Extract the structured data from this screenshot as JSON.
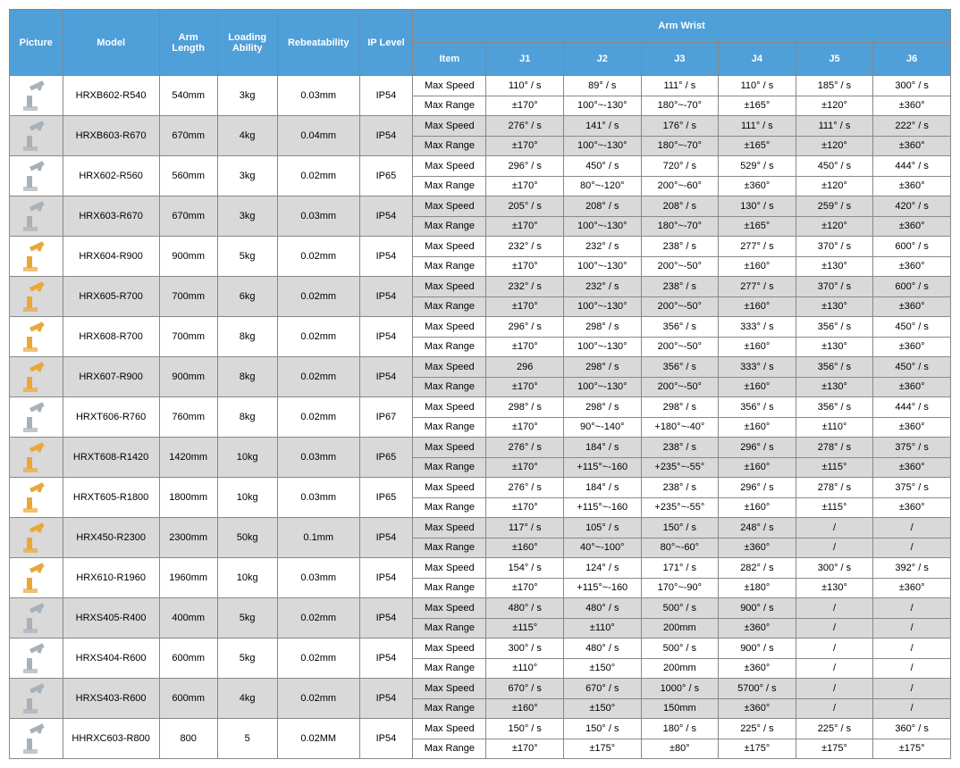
{
  "headers": {
    "picture": "Picture",
    "model": "Model",
    "arm_length": "Arm Length",
    "loading_ability": "Loading Ability",
    "repeatability": "Rebeatability",
    "ip_level": "IP Level",
    "arm_wrist": "Arm    Wrist",
    "item": "Item",
    "j1": "J1",
    "j2": "J2",
    "j3": "J3",
    "j4": "J4",
    "j5": "J5",
    "j6": "J6"
  },
  "row_labels": {
    "max_speed": "Max Speed",
    "max_range": "Max Range"
  },
  "colors": {
    "header_bg": "#4f9fd8",
    "header_text": "#ffffff",
    "odd_bg": "#ffffff",
    "even_bg": "#d9d9d9",
    "border": "#888888",
    "robot_gray": "#a8b0b8",
    "robot_yellow": "#e8a838"
  },
  "rows": [
    {
      "model": "HRXB602-R540",
      "arm_length": "540mm",
      "loading": "3kg",
      "rep": "0.03mm",
      "ip": "IP54",
      "speed": [
        "110° / s",
        "89° / s",
        "111° / s",
        "110° / s",
        "185° / s",
        "300° / s"
      ],
      "range": [
        "±170°",
        "100°~-130°",
        "180°~-70°",
        "±165°",
        "±120°",
        "±360°"
      ],
      "pic_color": "#a8b0b8"
    },
    {
      "model": "HRXB603-R670",
      "arm_length": "670mm",
      "loading": "4kg",
      "rep": "0.04mm",
      "ip": "IP54",
      "speed": [
        "276° / s",
        "141° / s",
        "176° / s",
        "111° / s",
        "111° / s",
        "222° / s"
      ],
      "range": [
        "±170°",
        "100°~-130°",
        "180°~-70°",
        "±165°",
        "±120°",
        "±360°"
      ],
      "pic_color": "#a8b0b8"
    },
    {
      "model": "HRX602-R560",
      "arm_length": "560mm",
      "loading": "3kg",
      "rep": "0.02mm",
      "ip": "IP65",
      "speed": [
        "296° / s",
        "450° / s",
        "720° / s",
        "529° / s",
        "450° / s",
        "444° / s"
      ],
      "range": [
        "±170°",
        "80°~-120°",
        "200°~-60°",
        "±360°",
        "±120°",
        "±360°"
      ],
      "pic_color": "#a8b0b8"
    },
    {
      "model": "HRX603-R670",
      "arm_length": "670mm",
      "loading": "3kg",
      "rep": "0.03mm",
      "ip": "IP54",
      "speed": [
        "205° / s",
        "208° / s",
        "208° / s",
        "130° / s",
        "259° / s",
        "420° / s"
      ],
      "range": [
        "±170°",
        "100°~-130°",
        "180°~-70°",
        "±165°",
        "±120°",
        "±360°"
      ],
      "pic_color": "#a8b0b8"
    },
    {
      "model": "HRX604-R900",
      "arm_length": "900mm",
      "loading": "5kg",
      "rep": "0.02mm",
      "ip": "IP54",
      "speed": [
        "232° / s",
        "232° / s",
        "238° / s",
        "277° / s",
        "370° / s",
        "600° / s"
      ],
      "range": [
        "±170°",
        "100°~-130°",
        "200°~-50°",
        "±160°",
        "±130°",
        "±360°"
      ],
      "pic_color": "#e8a838"
    },
    {
      "model": "HRX605-R700",
      "arm_length": "700mm",
      "loading": "6kg",
      "rep": "0.02mm",
      "ip": "IP54",
      "speed": [
        "232° / s",
        "232° / s",
        "238° / s",
        "277° / s",
        "370° / s",
        "600° / s"
      ],
      "range": [
        "±170°",
        "100°~-130°",
        "200°~-50°",
        "±160°",
        "±130°",
        "±360°"
      ],
      "pic_color": "#e8a838"
    },
    {
      "model": "HRX608-R700",
      "arm_length": "700mm",
      "loading": "8kg",
      "rep": "0.02mm",
      "ip": "IP54",
      "speed": [
        "296° / s",
        "298° / s",
        "356° / s",
        "333° / s",
        "356° / s",
        "450° / s"
      ],
      "range": [
        "±170°",
        "100°~-130°",
        "200°~-50°",
        "±160°",
        "±130°",
        "±360°"
      ],
      "pic_color": "#e8a838"
    },
    {
      "model": "HRX607-R900",
      "arm_length": "900mm",
      "loading": "8kg",
      "rep": "0.02mm",
      "ip": "IP54",
      "speed": [
        "296",
        "298° / s",
        "356° / s",
        "333° / s",
        "356° / s",
        "450° / s"
      ],
      "range": [
        "±170°",
        "100°~-130°",
        "200°~-50°",
        "±160°",
        "±130°",
        "±360°"
      ],
      "pic_color": "#e8a838"
    },
    {
      "model": "HRXT606-R760",
      "arm_length": "760mm",
      "loading": "8kg",
      "rep": "0.02mm",
      "ip": "IP67",
      "speed": [
        "298° / s",
        "298° / s",
        "298° / s",
        "356° / s",
        "356° / s",
        "444° / s"
      ],
      "range": [
        "±170°",
        "90°~-140°",
        "+180°~-40°",
        "±160°",
        "±110°",
        "±360°"
      ],
      "pic_color": "#a8b0b8"
    },
    {
      "model": "HRXT608-R1420",
      "arm_length": "1420mm",
      "loading": "10kg",
      "rep": "0.03mm",
      "ip": "IP65",
      "speed": [
        "276° / s",
        "184° / s",
        "238° / s",
        "296° / s",
        "278° / s",
        "375° / s"
      ],
      "range": [
        "±170°",
        "+115°~-160",
        "+235°~-55°",
        "±160°",
        "±115°",
        "±360°"
      ],
      "pic_color": "#e8a838"
    },
    {
      "model": "HRXT605-R1800",
      "arm_length": "1800mm",
      "loading": "10kg",
      "rep": "0.03mm",
      "ip": "IP65",
      "speed": [
        "276° / s",
        "184° / s",
        "238° / s",
        "296° / s",
        "278° / s",
        "375° / s"
      ],
      "range": [
        "±170°",
        "+115°~-160",
        "+235°~-55°",
        "±160°",
        "±115°",
        "±360°"
      ],
      "pic_color": "#e8a838"
    },
    {
      "model": "HRX450-R2300",
      "arm_length": "2300mm",
      "loading": "50kg",
      "rep": "0.1mm",
      "ip": "IP54",
      "speed": [
        "117° / s",
        "105° / s",
        "150° / s",
        "248° / s",
        "/",
        "/"
      ],
      "range": [
        "±160°",
        "40°~-100°",
        "80°~-60°",
        "±360°",
        "/",
        "/"
      ],
      "pic_color": "#e8a838"
    },
    {
      "model": "HRX610-R1960",
      "arm_length": "1960mm",
      "loading": "10kg",
      "rep": "0.03mm",
      "ip": "IP54",
      "speed": [
        "154° / s",
        "124° / s",
        "171° / s",
        "282° / s",
        "300° / s",
        "392° / s"
      ],
      "range": [
        "±170°",
        "+115°~-160",
        "170°~-90°",
        "±180°",
        "±130°",
        "±360°"
      ],
      "pic_color": "#e8a838"
    },
    {
      "model": "HRXS405-R400",
      "arm_length": "400mm",
      "loading": "5kg",
      "rep": "0.02mm",
      "ip": "IP54",
      "speed": [
        "480° / s",
        "480° / s",
        "500° / s",
        "900° / s",
        "/",
        "/"
      ],
      "range": [
        "±115°",
        "±110°",
        "200mm",
        "±360°",
        "/",
        "/"
      ],
      "pic_color": "#a8b0b8"
    },
    {
      "model": "HRXS404-R600",
      "arm_length": "600mm",
      "loading": "5kg",
      "rep": "0.02mm",
      "ip": "IP54",
      "speed": [
        "300° / s",
        "480° / s",
        "500° / s",
        "900° / s",
        "/",
        "/"
      ],
      "range": [
        "±110°",
        "±150°",
        "200mm",
        "±360°",
        "/",
        "/"
      ],
      "pic_color": "#a8b0b8"
    },
    {
      "model": "HRXS403-R600",
      "arm_length": "600mm",
      "loading": "4kg",
      "rep": "0.02mm",
      "ip": "IP54",
      "speed": [
        "670° / s",
        "670° / s",
        "1000° / s",
        "5700° / s",
        "/",
        "/"
      ],
      "range": [
        "±160°",
        "±150°",
        "150mm",
        "±360°",
        "/",
        "/"
      ],
      "pic_color": "#a8b0b8"
    },
    {
      "model": "HHRXC603-R800",
      "arm_length": "800",
      "loading": "5",
      "rep": "0.02MM",
      "ip": "IP54",
      "speed": [
        "150° / s",
        "150° / s",
        "180° / s",
        "225° / s",
        "225° / s",
        "360° / s"
      ],
      "range": [
        "±170°",
        "±175°",
        "±80°",
        "±175°",
        "±175°",
        "±175°"
      ],
      "pic_color": "#a8b0b8"
    }
  ]
}
